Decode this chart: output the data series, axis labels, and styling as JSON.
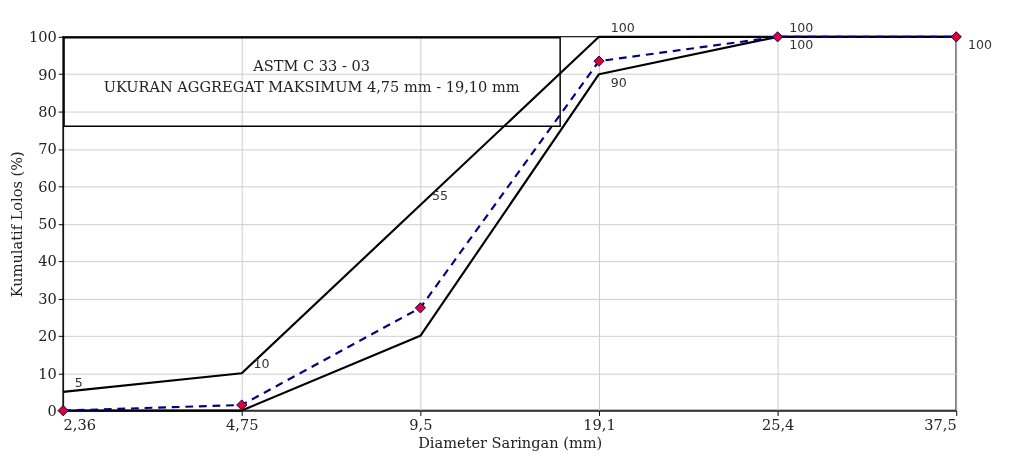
{
  "chart_data": {
    "type": "line",
    "xlabel": "Diameter Saringan  (mm)",
    "ylabel": "Kumulatif Lolos (%)",
    "categories": [
      "2,36",
      "4,75",
      "9,5",
      "19,1",
      "25,4",
      "37,5"
    ],
    "ylim": [
      0,
      100
    ],
    "yticks": [
      0,
      10,
      20,
      30,
      40,
      50,
      60,
      70,
      80,
      90,
      100
    ],
    "grid": true,
    "annotations": [
      "ASTM C 33 - 03",
      "UKURAN AGGREGAT MAKSIMUM 4,75  mm - 19,10 mm"
    ],
    "series": [
      {
        "color": "#000000",
        "values": [
          5,
          10,
          55,
          100,
          100,
          100
        ],
        "line_style": "solid",
        "marker": "none",
        "value_labels": [
          "5",
          "10",
          "55",
          "100",
          "100",
          null
        ]
      },
      {
        "color": "#000000",
        "values": [
          0,
          0,
          20,
          90,
          100,
          100
        ],
        "line_style": "solid",
        "marker": "none",
        "value_labels": [
          null,
          null,
          null,
          "90",
          "100",
          "100"
        ]
      },
      {
        "color": "#000080",
        "values": [
          0,
          1.5,
          27.5,
          93.5,
          100,
          100
        ],
        "line_style": "dashed",
        "marker": "diamond",
        "colors": [
          "#e0002a",
          "#e0002a",
          "#e0002a",
          "#e0002a",
          "#e0002a",
          "#e0002a"
        ]
      }
    ]
  }
}
